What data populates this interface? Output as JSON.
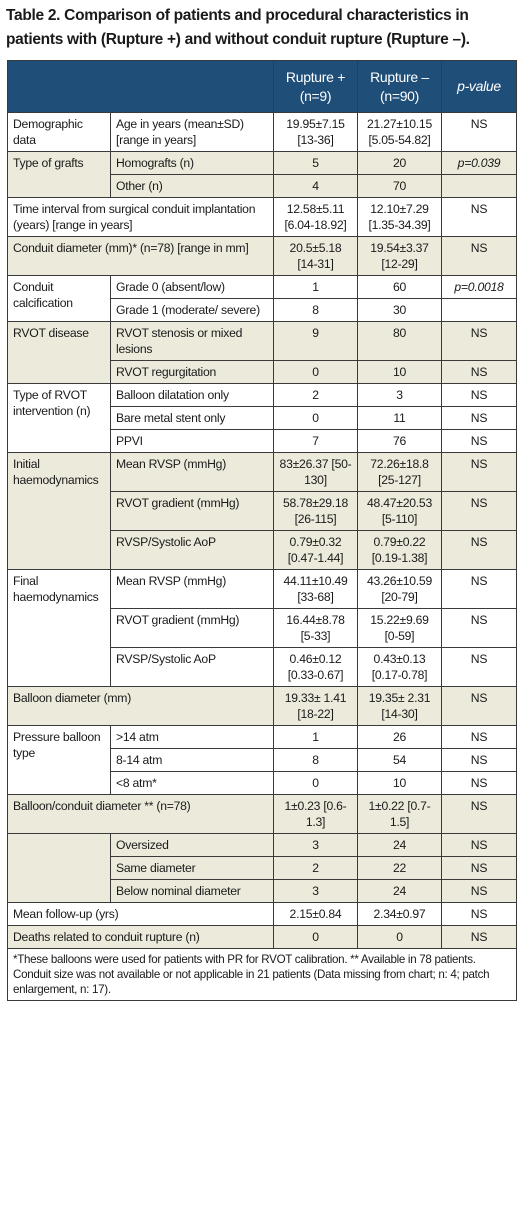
{
  "title": "Table 2. Comparison of patients and procedural characteristics in patients with (Rupture +) and without conduit rupture (Rupture –).",
  "header": {
    "col1": "Rupture + (n=9)",
    "col2": "Rupture – (n=90)",
    "col3": "p-value"
  },
  "rows": {
    "demo_cat": "Demographic data",
    "demo_sub": "Age in years (mean±SD) [range in years]",
    "demo_a": "19.95±7.15 [13-36]",
    "demo_b": "21.27±10.15 [5.05-54.82]",
    "demo_p": "NS",
    "grafts_cat": "Type of grafts",
    "homo_sub": "Homografts (n)",
    "homo_a": "5",
    "homo_b": "20",
    "homo_p": "p=0.039",
    "other_sub": "Other (n)",
    "other_a": "4",
    "other_b": "70",
    "interval_label": "Time interval from surgical conduit implantation (years) [range in years]",
    "interval_a": "12.58±5.11 [6.04-18.92]",
    "interval_b": "12.10±7.29 [1.35-34.39]",
    "interval_p": "NS",
    "diam_label": "Conduit diameter (mm)* (n=78) [range in mm]",
    "diam_a": "20.5±5.18 [14-31]",
    "diam_b": "19.54±3.37 [12-29]",
    "diam_p": "NS",
    "calc_cat": "Conduit calcification",
    "grade0_sub": "Grade 0 (absent/low)",
    "grade0_a": "1",
    "grade0_b": "60",
    "grade0_p": "p=0.0018",
    "grade1_sub": "Grade 1 (moderate/ severe)",
    "grade1_a": "8",
    "grade1_b": "30",
    "rvot_cat": "RVOT disease",
    "sten_sub": "RVOT stenosis or mixed lesions",
    "sten_a": "9",
    "sten_b": "80",
    "sten_p": "NS",
    "regurg_sub": "RVOT regurgitation",
    "regurg_a": "0",
    "regurg_b": "10",
    "regurg_p": "NS",
    "interv_cat": "Type of RVOT intervention (n)",
    "bal_sub": "Balloon dilatation only",
    "bal_a": "2",
    "bal_b": "3",
    "bal_p": "NS",
    "bms_sub": "Bare metal stent only",
    "bms_a": "0",
    "bms_b": "11",
    "bms_p": "NS",
    "ppvi_sub": "PPVI",
    "ppvi_a": "7",
    "ppvi_b": "76",
    "ppvi_p": "NS",
    "init_cat": "Initial haemodynamics",
    "init_rvsp_sub": "Mean RVSP (mmHg)",
    "init_rvsp_a": "83±26.37 [50-130]",
    "init_rvsp_b": "72.26±18.8 [25-127]",
    "init_rvsp_p": "NS",
    "init_grad_sub": "RVOT gradient (mmHg)",
    "init_grad_a": "58.78±29.18 [26-115]",
    "init_grad_b": "48.47±20.53 [5-110]",
    "init_grad_p": "NS",
    "init_ratio_sub": "RVSP/Systolic AoP",
    "init_ratio_a": "0.79±0.32 [0.47-1.44]",
    "init_ratio_b": "0.79±0.22 [0.19-1.38]",
    "init_ratio_p": "NS",
    "final_cat": "Final haemodynamics",
    "fin_rvsp_sub": "Mean RVSP (mmHg)",
    "fin_rvsp_a": "44.11±10.49 [33-68]",
    "fin_rvsp_b": "43.26±10.59 [20-79]",
    "fin_rvsp_p": "NS",
    "fin_grad_sub": "RVOT gradient (mmHg)",
    "fin_grad_a": "16.44±8.78 [5-33]",
    "fin_grad_b": "15.22±9.69 [0-59]",
    "fin_grad_p": "NS",
    "fin_ratio_sub": "RVSP/Systolic AoP",
    "fin_ratio_a": "0.46±0.12 [0.33-0.67]",
    "fin_ratio_b": "0.43±0.13 [0.17-0.78]",
    "fin_ratio_p": "NS",
    "balloon_label": "Balloon diameter (mm)",
    "balloon_a": "19.33± 1.41 [18-22]",
    "balloon_b": "19.35± 2.31 [14-30]",
    "balloon_p": "NS",
    "press_cat": "Pressure balloon type",
    "p14_sub": ">14 atm",
    "p14_a": "1",
    "p14_b": "26",
    "p14_p": "NS",
    "p8_sub": "8-14 atm",
    "p8_a": "8",
    "p8_b": "54",
    "p8_p": "NS",
    "plt8_sub": "<8 atm*",
    "plt8_a": "0",
    "plt8_b": "10",
    "plt8_p": "NS",
    "ratio_label": "Balloon/conduit diameter ** (n=78)",
    "ratio_a": "1±0.23 [0.6-1.3]",
    "ratio_b": "1±0.22 [0.7-1.5]",
    "ratio_p": "NS",
    "over_sub": "Oversized",
    "over_a": "3",
    "over_b": "24",
    "over_p": "NS",
    "same_sub": "Same diameter",
    "same_a": "2",
    "same_b": "22",
    "same_p": "NS",
    "below_sub": "Below nominal diameter",
    "below_a": "3",
    "below_b": "24",
    "below_p": "NS",
    "fu_label": "Mean follow-up (yrs)",
    "fu_a": "2.15±0.84",
    "fu_b": "2.34±0.97",
    "fu_p": "NS",
    "death_label": "Deaths related to conduit rupture (n)",
    "death_a": "0",
    "death_b": "0",
    "death_p": "NS"
  },
  "footnote": "*These balloons were used for patients with PR for RVOT calibration. ** Available in 78 patients. Conduit size was not available or not applicable in 21 patients (Data missing from chart; n: 4; patch enlargement, n: 17)."
}
